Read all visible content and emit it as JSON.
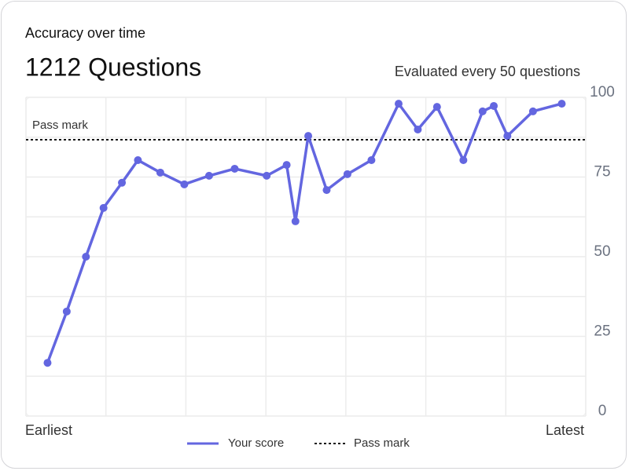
{
  "chart_data": {
    "type": "line",
    "title": "Accuracy over time",
    "headline": "1212 Questions",
    "subtitle": "Evaluated every 50 questions",
    "series": [
      {
        "name": "Your score",
        "color": "#6366e0",
        "x": [
          0.27,
          0.51,
          0.75,
          0.97,
          1.2,
          1.4,
          1.68,
          1.98,
          2.29,
          2.61,
          3.01,
          3.26,
          3.37,
          3.53,
          3.76,
          4.02,
          4.32,
          4.66,
          4.9,
          5.14,
          5.47,
          5.71,
          5.85,
          6.02,
          6.34,
          6.7
        ],
        "values": [
          16.7,
          32.8,
          50,
          65.3,
          73.2,
          80.3,
          76.4,
          72.7,
          75.4,
          77.6,
          75.4,
          78.8,
          61.1,
          87.9,
          70.9,
          75.9,
          80.3,
          98,
          89.9,
          97,
          80.3,
          95.6,
          97.3,
          87.9,
          95.6,
          98
        ]
      }
    ],
    "reference_lines": [
      {
        "name": "Pass mark",
        "label": "Pass mark",
        "value": 86.7,
        "color": "#111111"
      }
    ],
    "xlim": [
      0,
      7
    ],
    "xticks": [
      {
        "value": 0,
        "label": "Earliest"
      },
      {
        "value": 1,
        "label": null
      },
      {
        "value": 2,
        "label": null
      },
      {
        "value": 3,
        "label": null
      },
      {
        "value": 4,
        "label": null
      },
      {
        "value": 5,
        "label": null
      },
      {
        "value": 6,
        "label": null
      },
      {
        "value": 7,
        "label": "Latest"
      }
    ],
    "ylim": [
      0,
      100
    ],
    "yticks": [
      0,
      {
        "value": 12.5,
        "label": null
      },
      25,
      {
        "value": 37.5,
        "label": null
      },
      50,
      {
        "value": 62.5,
        "label": null
      },
      75,
      {
        "value": 87.5,
        "label": null
      },
      100
    ],
    "grid": true
  }
}
